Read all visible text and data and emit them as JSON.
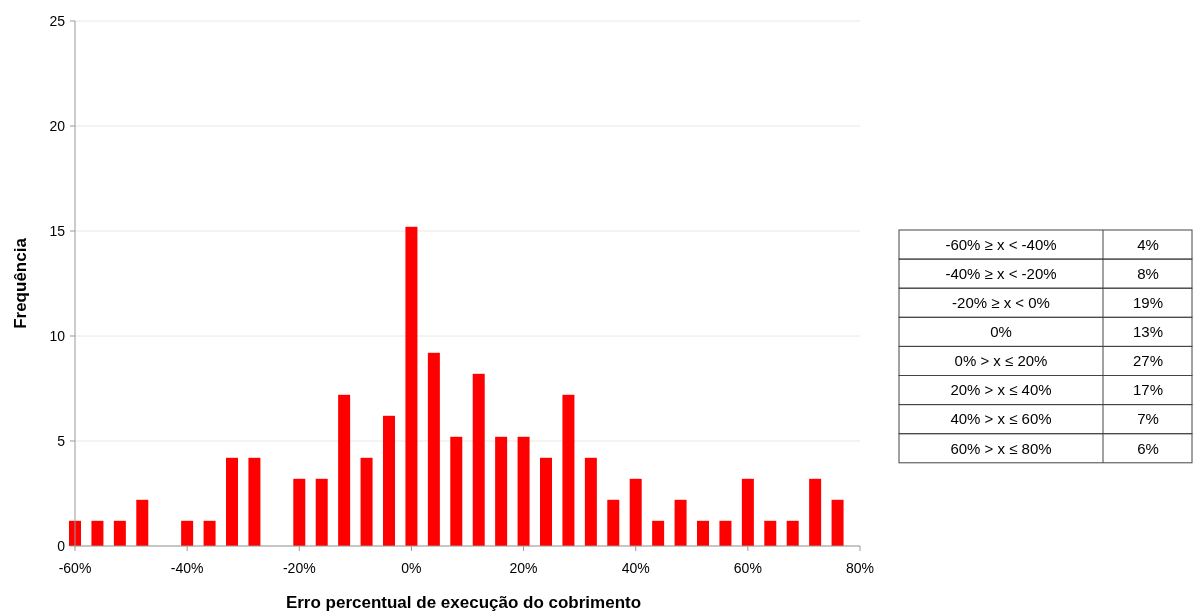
{
  "chart_data": [
    {
      "type": "bar",
      "xlabel": "Erro percentual de execução do cobrimento",
      "ylabel": "Frequência",
      "x": [
        -60,
        -56,
        -52,
        -48,
        -40,
        -36,
        -32,
        -28,
        -20,
        -16,
        -12,
        -8,
        -4,
        0,
        4,
        8,
        12,
        16,
        20,
        24,
        28,
        32,
        36,
        40,
        44,
        48,
        52,
        56,
        60,
        64,
        68,
        72,
        76
      ],
      "values": [
        1.2,
        1.2,
        1.2,
        2.2,
        1.2,
        1.2,
        4.2,
        4.2,
        3.2,
        3.2,
        7.2,
        4.2,
        6.2,
        15.2,
        9.2,
        5.2,
        8.2,
        5.2,
        5.2,
        4.2,
        7.2,
        4.2,
        2.2,
        3.2,
        1.2,
        2.2,
        1.2,
        1.2,
        3.2,
        1.2,
        1.2,
        3.2,
        2.2
      ],
      "color": "#ff0000",
      "xlim": [
        -60,
        80
      ],
      "xticks": [
        {
          "value": -60,
          "label": "-60%"
        },
        {
          "value": -40,
          "label": "-40%"
        },
        {
          "value": -20,
          "label": "-20%"
        },
        {
          "value": 0,
          "label": "0%"
        },
        {
          "value": 20,
          "label": "20%"
        },
        {
          "value": 40,
          "label": "40%"
        },
        {
          "value": 60,
          "label": "60%"
        },
        {
          "value": 80,
          "label": "80%"
        }
      ],
      "ylim": [
        0,
        25
      ],
      "yticks": [
        0,
        5,
        10,
        15,
        20,
        25
      ],
      "grid": "y"
    },
    {
      "type": "other",
      "categories": [
        "-60% ≥ x < -40%",
        "-40% ≥ x < -20%",
        "-20% ≥ x < 0%",
        "0%",
        "0% > x ≤ 20%",
        "20% > x ≤ 40%",
        "40% > x ≤ 60%",
        "60% > x ≤ 80%"
      ],
      "value_labels": [
        "4%",
        "8%",
        "19%",
        "13%",
        "27%",
        "17%",
        "7%",
        "6%"
      ]
    }
  ]
}
